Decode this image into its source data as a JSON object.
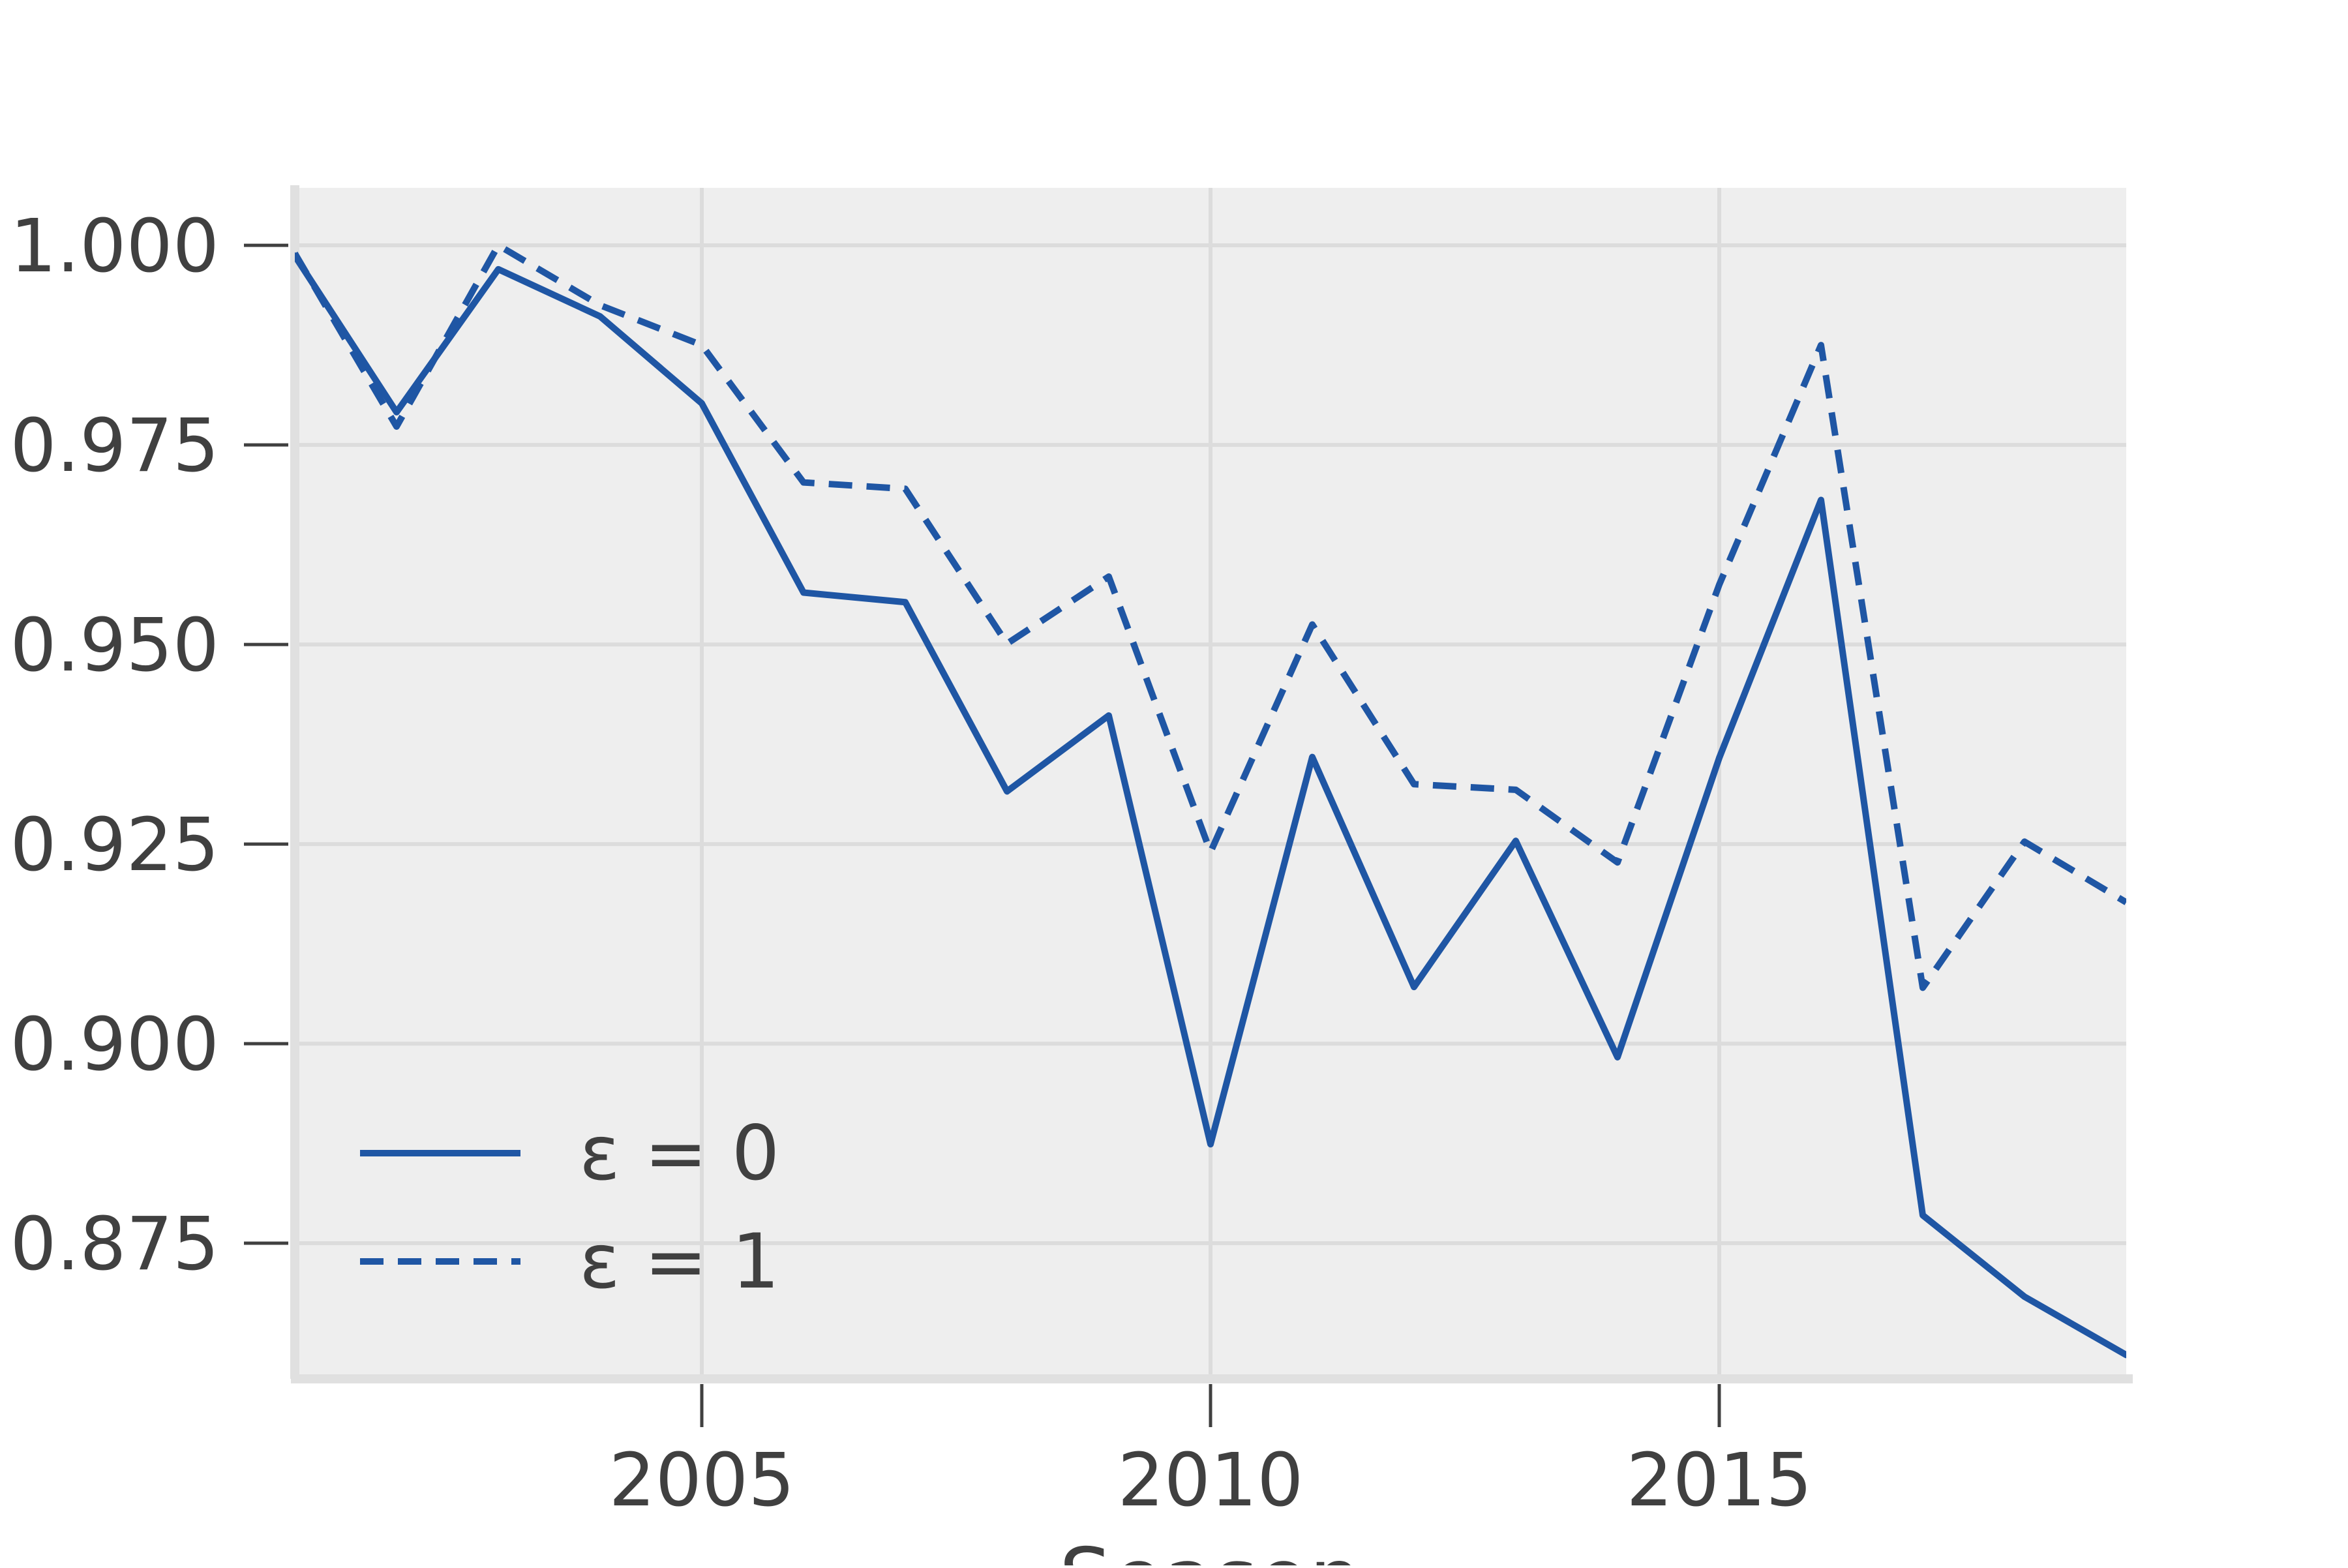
{
  "chart_data": {
    "type": "line",
    "title": "",
    "xlabel": "Season",
    "ylabel": "",
    "x": [
      2001,
      2002,
      2003,
      2004,
      2005,
      2006,
      2007,
      2008,
      2009,
      2010,
      2011,
      2012,
      2013,
      2014,
      2015,
      2016,
      2017,
      2018,
      2019
    ],
    "series": [
      {
        "name": "ε = 0",
        "style": "solid",
        "values": [
          0.9987,
          0.9791,
          0.997,
          0.9911,
          0.9802,
          0.9565,
          0.9553,
          0.9316,
          0.9411,
          0.8874,
          0.9359,
          0.9071,
          0.9254,
          0.8983,
          0.9358,
          0.9681,
          0.8785,
          0.8683,
          0.861
        ]
      },
      {
        "name": "ε = 1",
        "style": "dashed",
        "values": [
          0.999,
          0.9773,
          1.0,
          0.9925,
          0.9875,
          0.9703,
          0.9695,
          0.9501,
          0.9585,
          0.924,
          0.9525,
          0.9325,
          0.9318,
          0.9227,
          0.9575,
          0.9875,
          0.907,
          0.9253,
          0.9177
        ]
      }
    ],
    "xlim": [
      2001,
      2019
    ],
    "ylim": [
      0.8585,
      1.0072
    ],
    "xticks": [
      2005,
      2010,
      2015
    ],
    "xtick_labels": [
      "2005",
      "2010",
      "2015"
    ],
    "yticks": [
      0.875,
      0.9,
      0.925,
      0.95,
      0.975,
      1.0
    ],
    "ytick_labels": [
      "0.875",
      "0.900",
      "0.925",
      "0.950",
      "0.975",
      "1.000"
    ],
    "grid": true,
    "legend_position": "lower-left",
    "colors": {
      "line": "#1f56a4",
      "plot_background": "#eeeeee",
      "grid": "#dcdcdc",
      "spine": "#e0e0e0",
      "tick": "#404040",
      "text": "#404040"
    }
  }
}
